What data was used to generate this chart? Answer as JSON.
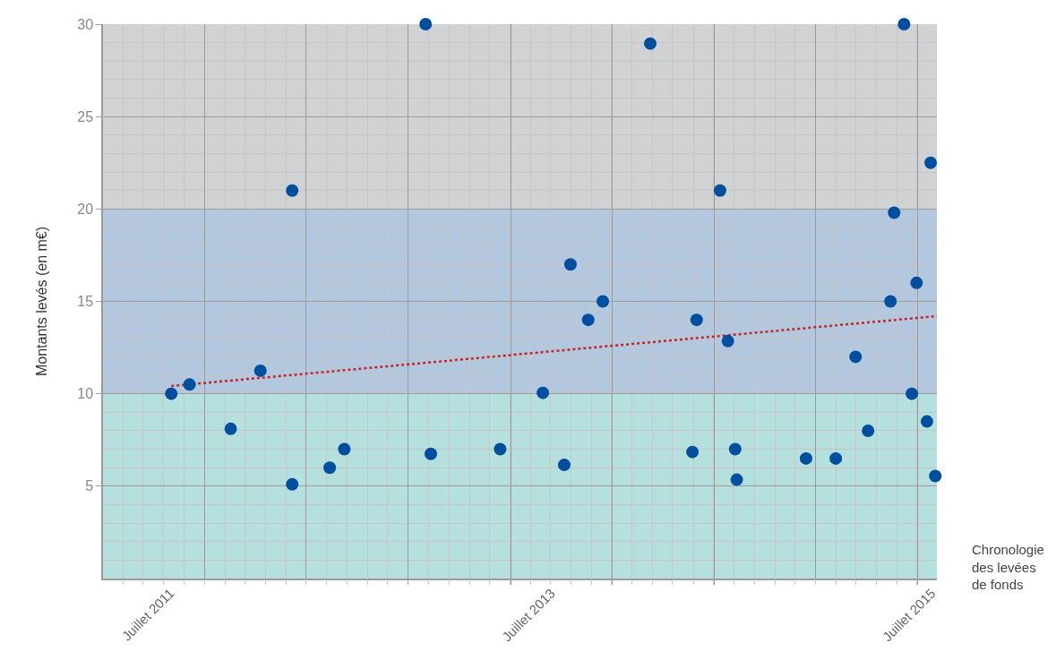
{
  "chart_data": {
    "type": "scatter",
    "xlabel": "Chronologie\ndes levées\nde fonds",
    "ylabel": "Montants levés (en m€)",
    "xlim": [
      "2011-02-22",
      "2015-07-11"
    ],
    "ylim": [
      0,
      30
    ],
    "xticks": [
      {
        "value": "2011-07-01",
        "label": "Juillet 2011"
      },
      {
        "value": "2011-09-05",
        "label": null
      },
      {
        "value": "2012-03-18",
        "label": null
      },
      {
        "value": "2012-09-30",
        "label": null
      },
      {
        "value": "2013-04-14",
        "label": null
      },
      {
        "value": "2013-07-01",
        "label": "Juillet 2013"
      },
      {
        "value": "2013-10-26",
        "label": null
      },
      {
        "value": "2014-05-10",
        "label": null
      },
      {
        "value": "2014-11-20",
        "label": null
      },
      {
        "value": "2015-06-04",
        "label": null
      },
      {
        "value": "2015-07-01",
        "label": "Juillet 2015"
      }
    ],
    "yticks": [
      5,
      10,
      15,
      20,
      25,
      30
    ],
    "grid": true,
    "marker": "circle",
    "bands": [
      {
        "axis": "y",
        "from": 0,
        "to": 10,
        "color": "#b5e0de"
      },
      {
        "axis": "y",
        "from": 10,
        "to": 20,
        "color": "#b3c8de"
      },
      {
        "axis": "y",
        "from": 20,
        "to": 30,
        "color": "#d1d2d4"
      }
    ],
    "series": [
      {
        "type": "scatter",
        "color": "#004f9f",
        "x": [
          "2011-07-03",
          "2011-08-07",
          "2011-10-25",
          "2011-12-21",
          "2012-02-20",
          "2012-02-20",
          "2012-05-02",
          "2012-05-30",
          "2012-11-02",
          "2012-11-12",
          "2013-03-25",
          "2013-06-15",
          "2013-07-26",
          "2013-08-07",
          "2013-09-10",
          "2013-10-08",
          "2014-01-07",
          "2014-03-29",
          "2014-04-06",
          "2014-05-21",
          "2014-06-05",
          "2014-06-19",
          "2014-06-22",
          "2014-11-02",
          "2014-12-29",
          "2015-02-05",
          "2015-03-01",
          "2015-04-13",
          "2015-04-20",
          "2015-05-09",
          "2015-05-24",
          "2015-06-02",
          "2015-06-22",
          "2015-06-29",
          "2015-07-08"
        ],
        "values": [
          10.0,
          10.5,
          8.1,
          11.25,
          21.0,
          5.1,
          6.0,
          7.0,
          30.0,
          6.75,
          7.0,
          10.05,
          6.15,
          17.0,
          14.0,
          15.0,
          28.95,
          6.85,
          14.0,
          21.0,
          12.85,
          7.0,
          5.35,
          6.5,
          6.5,
          12.0,
          8.0,
          15.0,
          19.8,
          30.0,
          10.0,
          16.0,
          8.5,
          22.5,
          5.55
        ]
      },
      {
        "type": "line",
        "color": "#c0272d",
        "line_style": "dotted",
        "marker": "none",
        "x": [
          "2011-07-03",
          "2015-07-11"
        ],
        "values": [
          10.42,
          14.2
        ]
      }
    ]
  }
}
